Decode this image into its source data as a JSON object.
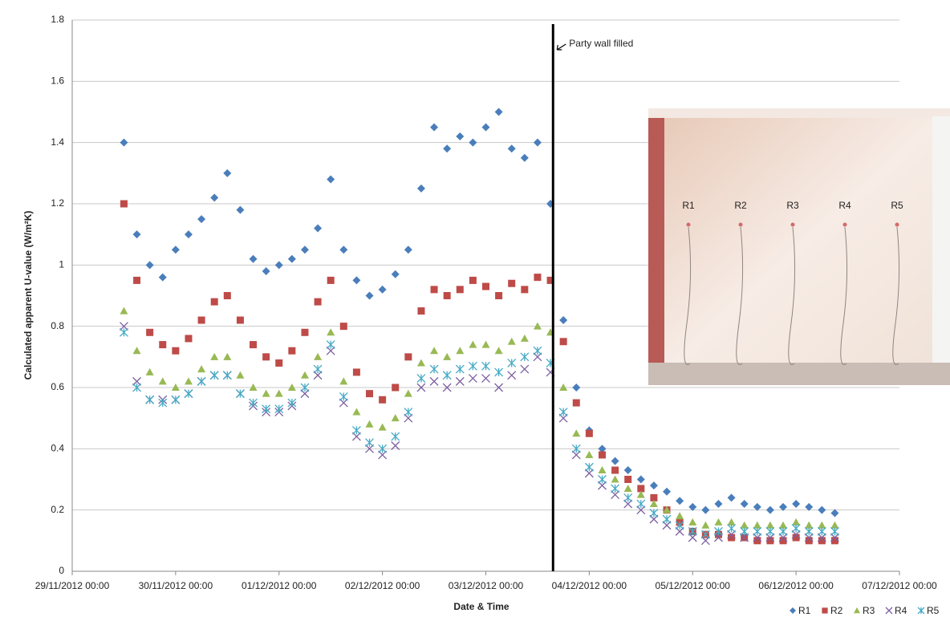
{
  "chart_data": {
    "type": "scatter",
    "x_label": "Date & Time",
    "y_label": "Calculated apparent U-value (W/m²K)",
    "xlim": [
      41242,
      41250
    ],
    "xticks": [
      {
        "value": 41242,
        "label": "29/11/2012 00:00"
      },
      {
        "value": 41243,
        "label": "30/11/2012 00:00"
      },
      {
        "value": 41244,
        "label": "01/12/2012 00:00"
      },
      {
        "value": 41245,
        "label": "02/12/2012 00:00"
      },
      {
        "value": 41246,
        "label": "03/12/2012 00:00"
      },
      {
        "value": 41247,
        "label": "04/12/2012 00:00"
      },
      {
        "value": 41248,
        "label": "05/12/2012 00:00"
      },
      {
        "value": 41249,
        "label": "06/12/2012 00:00"
      },
      {
        "value": 41250,
        "label": "07/12/2012 00:00"
      }
    ],
    "ylim": [
      0,
      1.8
    ],
    "yticks": [
      0,
      0.2,
      0.4,
      0.6,
      0.8,
      1,
      1.2,
      1.4,
      1.6,
      1.8
    ],
    "grid": true,
    "legend": "bottom-right",
    "x": [
      41242.5,
      41242.625,
      41242.75,
      41242.875,
      41243,
      41243.125,
      41243.25,
      41243.375,
      41243.5,
      41243.625,
      41243.75,
      41243.875,
      41244,
      41244.125,
      41244.25,
      41244.375,
      41244.5,
      41244.625,
      41244.75,
      41244.875,
      41245,
      41245.125,
      41245.25,
      41245.375,
      41245.5,
      41245.625,
      41245.75,
      41245.875,
      41246,
      41246.125,
      41246.25,
      41246.375,
      41246.5,
      41246.625,
      41246.75,
      41246.875,
      41247,
      41247.125,
      41247.25,
      41247.375,
      41247.5,
      41247.625,
      41247.75,
      41247.875,
      41248,
      41248.125,
      41248.25,
      41248.375,
      41248.5,
      41248.625,
      41248.75,
      41248.875,
      41249,
      41249.125,
      41249.25,
      41249.375
    ],
    "series": [
      {
        "name": "R1",
        "color": "#4a7ebb",
        "marker": "diamond",
        "values": [
          1.4,
          1.1,
          1.0,
          0.96,
          1.05,
          1.1,
          1.15,
          1.22,
          1.3,
          1.18,
          1.02,
          0.98,
          1.0,
          1.02,
          1.05,
          1.12,
          1.28,
          1.05,
          0.95,
          0.9,
          0.92,
          0.97,
          1.05,
          1.25,
          1.45,
          1.38,
          1.42,
          1.4,
          1.45,
          1.5,
          1.38,
          1.35,
          1.4,
          1.2,
          0.82,
          0.6,
          0.46,
          0.4,
          0.36,
          0.33,
          0.3,
          0.28,
          0.26,
          0.23,
          0.21,
          0.2,
          0.22,
          0.24,
          0.22,
          0.21,
          0.2,
          0.21,
          0.22,
          0.21,
          0.2,
          0.19
        ]
      },
      {
        "name": "R2",
        "color": "#be4b48",
        "marker": "square",
        "values": [
          1.2,
          0.95,
          0.78,
          0.74,
          0.72,
          0.76,
          0.82,
          0.88,
          0.9,
          0.82,
          0.74,
          0.7,
          0.68,
          0.72,
          0.78,
          0.88,
          0.95,
          0.8,
          0.65,
          0.58,
          0.56,
          0.6,
          0.7,
          0.85,
          0.92,
          0.9,
          0.92,
          0.95,
          0.93,
          0.9,
          0.94,
          0.92,
          0.96,
          0.95,
          0.75,
          0.55,
          0.45,
          0.38,
          0.33,
          0.3,
          0.27,
          0.24,
          0.2,
          0.16,
          0.13,
          0.12,
          0.12,
          0.11,
          0.11,
          0.1,
          0.1,
          0.1,
          0.11,
          0.1,
          0.1,
          0.1
        ]
      },
      {
        "name": "R3",
        "color": "#98b954",
        "marker": "triangle",
        "values": [
          0.85,
          0.72,
          0.65,
          0.62,
          0.6,
          0.62,
          0.66,
          0.7,
          0.7,
          0.64,
          0.6,
          0.58,
          0.58,
          0.6,
          0.64,
          0.7,
          0.78,
          0.62,
          0.52,
          0.48,
          0.47,
          0.5,
          0.58,
          0.68,
          0.72,
          0.7,
          0.72,
          0.74,
          0.74,
          0.72,
          0.75,
          0.76,
          0.8,
          0.78,
          0.6,
          0.45,
          0.38,
          0.33,
          0.3,
          0.27,
          0.25,
          0.22,
          0.2,
          0.18,
          0.16,
          0.15,
          0.16,
          0.16,
          0.15,
          0.15,
          0.15,
          0.15,
          0.16,
          0.15,
          0.15,
          0.15
        ]
      },
      {
        "name": "R4",
        "color": "#7d60a0",
        "marker": "cross",
        "values": [
          0.8,
          0.62,
          0.56,
          0.56,
          0.56,
          0.58,
          0.62,
          0.64,
          0.64,
          0.58,
          0.54,
          0.52,
          0.52,
          0.54,
          0.58,
          0.64,
          0.72,
          0.55,
          0.44,
          0.4,
          0.38,
          0.41,
          0.5,
          0.6,
          0.62,
          0.6,
          0.62,
          0.63,
          0.63,
          0.6,
          0.64,
          0.66,
          0.7,
          0.65,
          0.5,
          0.38,
          0.32,
          0.28,
          0.25,
          0.22,
          0.2,
          0.17,
          0.15,
          0.13,
          0.11,
          0.1,
          0.11,
          0.12,
          0.11,
          0.11,
          0.11,
          0.11,
          0.12,
          0.11,
          0.11,
          0.11
        ]
      },
      {
        "name": "R5",
        "color": "#46aac5",
        "marker": "star",
        "values": [
          0.78,
          0.6,
          0.56,
          0.55,
          0.56,
          0.58,
          0.62,
          0.64,
          0.64,
          0.58,
          0.55,
          0.53,
          0.53,
          0.55,
          0.6,
          0.66,
          0.74,
          0.57,
          0.46,
          0.42,
          0.4,
          0.44,
          0.52,
          0.63,
          0.66,
          0.64,
          0.66,
          0.67,
          0.67,
          0.65,
          0.68,
          0.7,
          0.72,
          0.68,
          0.52,
          0.4,
          0.34,
          0.3,
          0.27,
          0.24,
          0.22,
          0.19,
          0.17,
          0.15,
          0.13,
          0.12,
          0.13,
          0.14,
          0.13,
          0.13,
          0.13,
          0.13,
          0.14,
          0.13,
          0.13,
          0.13
        ]
      }
    ],
    "annotation": {
      "text": "Party wall filled",
      "x": 41246.65
    },
    "inset_labels": [
      "R1",
      "R2",
      "R3",
      "R4",
      "R5"
    ]
  }
}
